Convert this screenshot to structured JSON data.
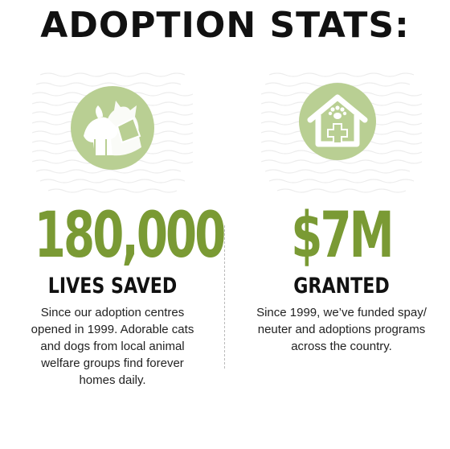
{
  "title": "ADOPTION STATS:",
  "stats": [
    {
      "icon": "cat-and-dog-icon",
      "number": "180,000",
      "label": "LIVES SAVED",
      "description_lines": [
        "Since our adoption centres",
        "opened in 1999. Adorable cats",
        "and dogs from local animal",
        "welfare groups find forever",
        "homes daily."
      ]
    },
    {
      "icon": "pet-hospital-house-icon",
      "number": "$7M",
      "label": "GRANTED",
      "description_lines": [
        "Since 1999, we’ve funded spay/",
        "neuter and adoptions programs",
        "across the country."
      ]
    }
  ],
  "colors": {
    "accent_green": "#7a9a34",
    "icon_circle": "#b9cf93",
    "text_dark": "#111111"
  }
}
